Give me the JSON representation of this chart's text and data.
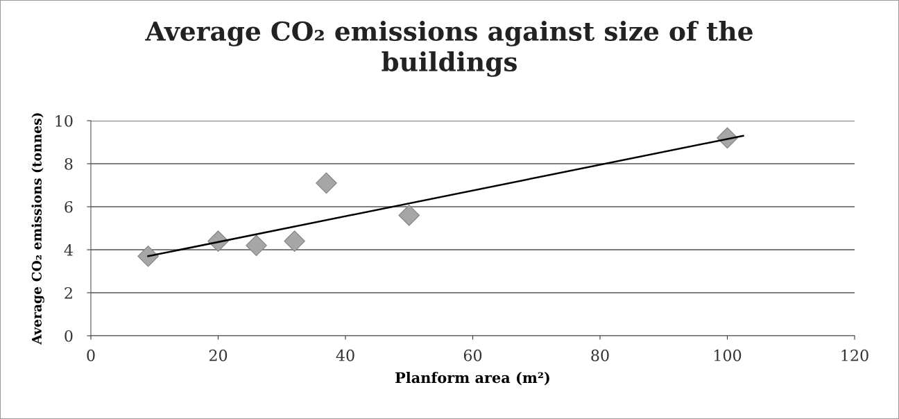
{
  "chart_data": {
    "type": "scatter",
    "title": "Average CO₂ emissions against size of the buildings",
    "xlabel": "Planform area (m²)",
    "ylabel": "Average CO₂ emissions (tonnes)",
    "series": [
      {
        "color": "#a6a6a6",
        "marker": "diamond",
        "x": [
          9,
          20,
          26,
          32,
          37,
          50,
          100
        ],
        "values": [
          3.7,
          4.4,
          4.2,
          4.4,
          7.1,
          5.6,
          9.2
        ]
      },
      {
        "type": "line",
        "color": "#000000",
        "marker": "none",
        "line_style": "solid",
        "x": [
          9,
          102.5
        ],
        "values": [
          3.7,
          9.3
        ]
      }
    ],
    "xlim": [
      0,
      120
    ],
    "ylim": [
      0,
      10
    ],
    "xticks": [
      0,
      20,
      40,
      60,
      80,
      100,
      120
    ],
    "yticks": [
      0,
      2,
      4,
      6,
      8,
      10
    ],
    "grid": "y"
  }
}
